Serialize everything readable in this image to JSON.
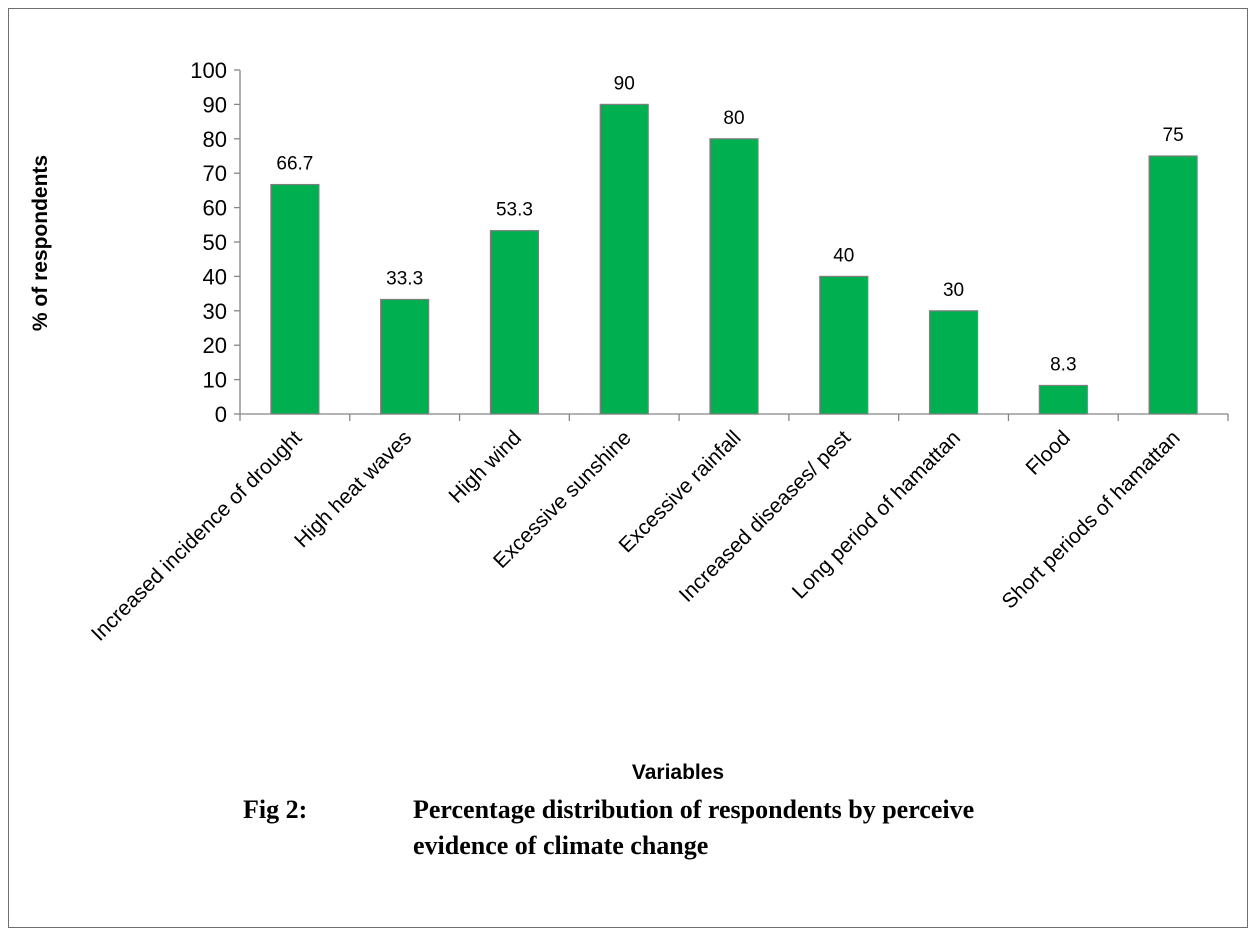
{
  "chart_data": {
    "type": "bar",
    "title": "",
    "xlabel": "Variables",
    "ylabel": "% of respondents",
    "ylim": [
      0,
      100
    ],
    "yticks": [
      0,
      10,
      20,
      30,
      40,
      50,
      60,
      70,
      80,
      90,
      100
    ],
    "grid": false,
    "legend": "none",
    "bar_color": "#00b050",
    "categories": [
      "Increased incidence of drought",
      "High heat waves",
      "High wind",
      "Excessive sunshine",
      "Excessive rainfall",
      "Increased diseases/ pest",
      "Long period of hamattan",
      "Flood",
      "Short periods of hamattan"
    ],
    "values": [
      66.7,
      33.3,
      53.3,
      90,
      80,
      40,
      30,
      8.3,
      75
    ],
    "data_labels": [
      "66.7",
      "33.3",
      "53.3",
      "90",
      "80",
      "40",
      "30",
      "8.3",
      "75"
    ]
  },
  "caption": {
    "label": "Fig 2:",
    "line1": "Percentage distribution of respondents by perceive",
    "line2": "evidence of climate change"
  }
}
